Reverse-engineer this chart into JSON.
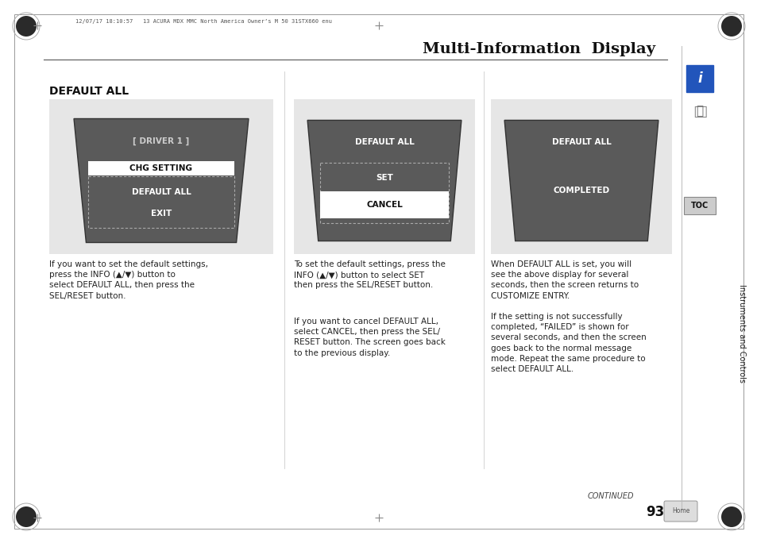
{
  "page_bg": "#ffffff",
  "title": "Multi-Information  Display",
  "title_fontsize": 14,
  "section_title": "DEFAULT ALL",
  "top_text": "12/07/17 18:10:57   13 ACURA MDX MMC North America Owner’s M 50 31STX660 enu",
  "page_number": "93",
  "continued_text": "CONTINUED",
  "text1": "If you want to set the default settings,\npress the INFO (▲/▼) button to\nselect DEFAULT ALL, then press the\nSEL/RESET button.",
  "text2_line1": "To set the default settings, press the\nINFO (▲/▼) button to select SET\nthen press the SEL/RESET button.",
  "text2_line2": "If you want to cancel DEFAULT ALL,\nselect CANCEL, then press the SEL/\nRESET button. The screen goes back\nto the previous display.",
  "text3": "When DEFAULT ALL is set, you will\nsee the above display for several\nseconds, then the screen returns to\nCUSTOMIZE ENTRY.\n\nIf the setting is not successfully\ncompleted, “FAILED” is shown for\nseveral seconds, and then the screen\ngoes back to the normal message\nmode. Repeat the same procedure to\nselect DEFAULT ALL.",
  "text_fontsize": 7.5,
  "screen_dark": "#5a5a5a",
  "screen_edge": "#333333",
  "highlight_white": "#ffffff",
  "panel_bg": "#e6e6e6",
  "sidebar_bg": "#ffffff",
  "toc_bg": "#cccccc",
  "info_blue": "#2255bb"
}
